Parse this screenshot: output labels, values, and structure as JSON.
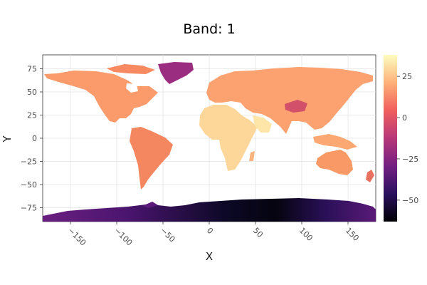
{
  "title": "Band: 1",
  "xlabel": "X",
  "ylabel": "Y",
  "map": {
    "xlim": [
      -180,
      180
    ],
    "ylim": [
      -90,
      90
    ],
    "x_ticks": [
      -150,
      -100,
      -50,
      0,
      50,
      100,
      150
    ],
    "y_ticks": [
      75,
      50,
      25,
      0,
      -25,
      -50,
      -75
    ],
    "x_tick_labels": [
      "−150",
      "−100",
      "−50",
      "0",
      "50",
      "100",
      "150"
    ],
    "y_tick_labels": [
      "75",
      "50",
      "25",
      "0",
      "−25",
      "−50",
      "−75"
    ],
    "grid": true
  },
  "colorbar": {
    "range": [
      -63,
      38
    ],
    "ticks": [
      25,
      0,
      -25,
      -50
    ],
    "tick_labels": [
      "25",
      "0",
      "−25",
      "−50"
    ],
    "colors": [
      "#000004",
      "#2c115f",
      "#721f81",
      "#b73779",
      "#f1605d",
      "#feb078",
      "#fcfdbf"
    ]
  }
}
